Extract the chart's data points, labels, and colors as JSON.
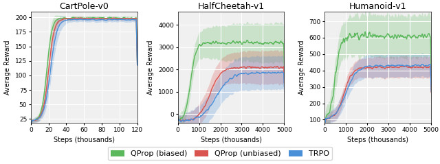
{
  "title1": "CartPole-v0",
  "title2": "HalfCheetah-v1",
  "title3": "Humanoid-v1",
  "ylabel": "Average Reward",
  "xlabel": "Steps (thousands)",
  "legend_labels": [
    "QProp (biased)",
    "QProp (unbiased)",
    "TRPO"
  ],
  "colors": {
    "green": "#5cb85c",
    "red": "#d9534f",
    "blue": "#4a90d9"
  },
  "fill_alpha": 0.25,
  "line_width": 1.0,
  "cartpole": {
    "xlim": [
      0,
      120
    ],
    "ylim": [
      18,
      210
    ],
    "xticks": [
      0,
      20,
      40,
      60,
      80,
      100,
      120
    ],
    "yticks": [
      25,
      50,
      75,
      100,
      125,
      150,
      175,
      200
    ]
  },
  "halfcheetah": {
    "xlim": [
      0,
      5000
    ],
    "ylim": [
      -400,
      4600
    ],
    "xticks": [
      0,
      1000,
      2000,
      3000,
      4000,
      5000
    ],
    "yticks": [
      0,
      1000,
      2000,
      3000,
      4000
    ]
  },
  "humanoid": {
    "xlim": [
      0,
      5000
    ],
    "ylim": [
      80,
      760
    ],
    "xticks": [
      0,
      1000,
      2000,
      3000,
      4000,
      5000
    ],
    "yticks": [
      100,
      200,
      300,
      400,
      500,
      600,
      700
    ]
  },
  "background_color": "#f0f0f0",
  "grid_color": "#ffffff",
  "title_fontsize": 9,
  "label_fontsize": 7,
  "tick_fontsize": 6.5,
  "legend_fontsize": 8
}
